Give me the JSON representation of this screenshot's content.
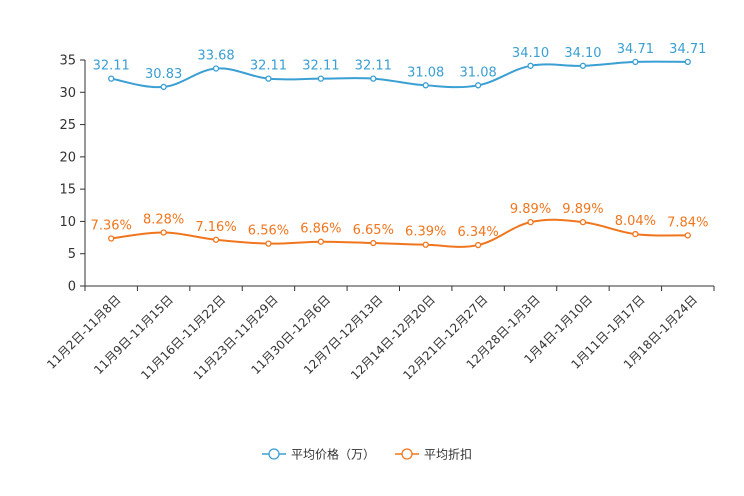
{
  "chart_data": {
    "type": "line",
    "categories": [
      "11月2日-11月8日",
      "11月9日-11月15日",
      "11月16日-11月22日",
      "11月23日-11月29日",
      "11月30日-12月6日",
      "12月7日-12月13日",
      "12月14日-12月20日",
      "12月21日-12月27日",
      "12月28日-1月3日",
      "1月4日-1月10日",
      "1月11日-1月17日",
      "1月18日-1月24日"
    ],
    "ylim": [
      0,
      35
    ],
    "yticks": [
      0,
      5,
      10,
      15,
      20,
      25,
      30,
      35
    ],
    "series": [
      {
        "name": "平均价格（万）",
        "color": "#3a9fd2",
        "values": [
          32.11,
          30.83,
          33.68,
          32.11,
          32.11,
          32.11,
          31.08,
          31.08,
          34.1,
          34.1,
          34.71,
          34.71
        ],
        "labels": [
          "32.11",
          "30.83",
          "33.68",
          "32.11",
          "32.11",
          "32.11",
          "31.08",
          "31.08",
          "34.10",
          "34.10",
          "34.71",
          "34.71"
        ]
      },
      {
        "name": "平均折扣",
        "color": "#f0761e",
        "values": [
          7.36,
          8.28,
          7.16,
          6.56,
          6.86,
          6.65,
          6.39,
          6.34,
          9.89,
          9.89,
          8.04,
          7.84
        ],
        "labels": [
          "7.36%",
          "8.28%",
          "7.16%",
          "6.56%",
          "6.86%",
          "6.65%",
          "6.39%",
          "6.34%",
          "9.89%",
          "9.89%",
          "8.04%",
          "7.84%"
        ]
      }
    ],
    "legend_position": "bottom-center"
  }
}
